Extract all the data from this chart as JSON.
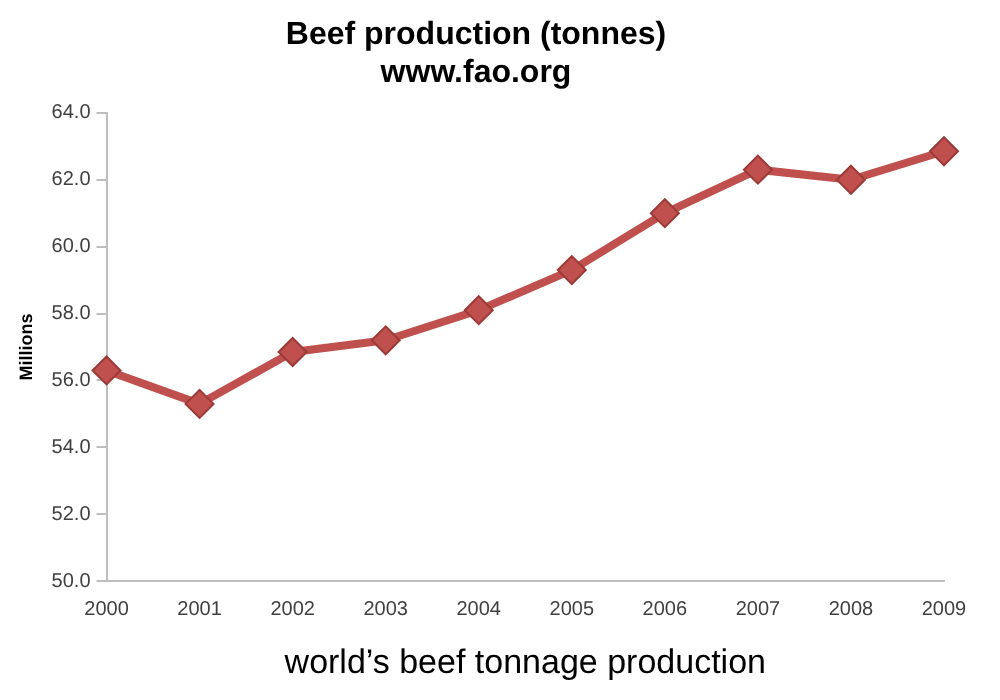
{
  "chart_data": {
    "type": "line",
    "title": [
      "Beef production (tonnes)",
      "www.fao.org"
    ],
    "xlabel": "world’s beef tonnage production",
    "ylabel": "Millions",
    "categories": [
      "2000",
      "2001",
      "2002",
      "2003",
      "2004",
      "2005",
      "2006",
      "2007",
      "2008",
      "2009"
    ],
    "series": [
      {
        "color": "#c0504d",
        "values": [
          56.3,
          55.3,
          56.85,
          57.2,
          58.1,
          59.3,
          61.0,
          62.3,
          62.0,
          62.85
        ]
      }
    ],
    "ylim": [
      50,
      64
    ],
    "yticks": [
      {
        "value": 50,
        "label": "50.0"
      },
      {
        "value": 52,
        "label": "52.0"
      },
      {
        "value": 54,
        "label": "54.0"
      },
      {
        "value": 56,
        "label": "56.0"
      },
      {
        "value": 58,
        "label": "58.0"
      },
      {
        "value": 60,
        "label": "60.0"
      },
      {
        "value": 62,
        "label": "62.0"
      },
      {
        "value": 64,
        "label": "64.0"
      }
    ],
    "grid": false,
    "legend": false,
    "marker": "diamond",
    "line_style": "solid"
  }
}
